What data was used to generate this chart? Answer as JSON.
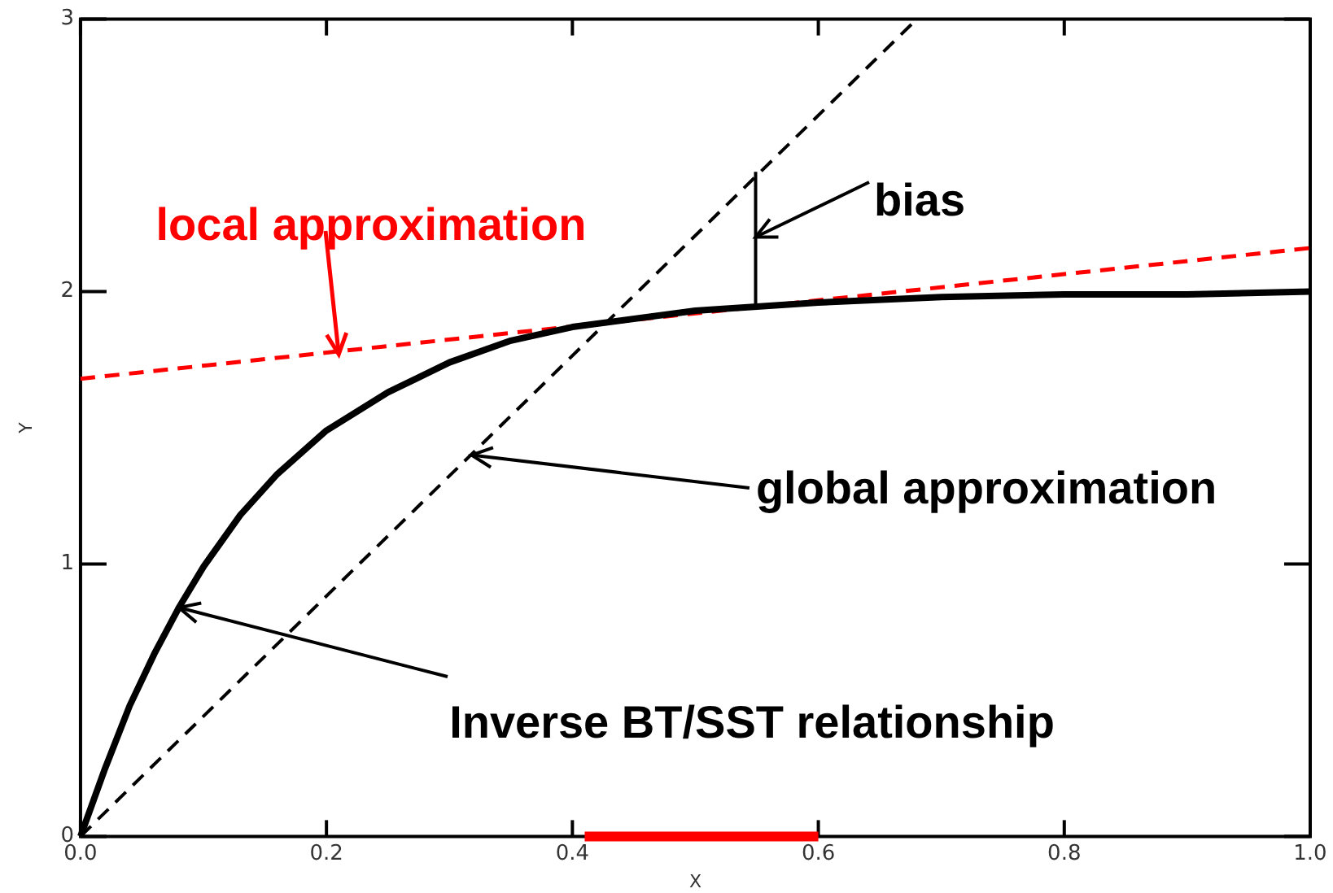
{
  "chart_data": {
    "type": "line",
    "xlabel": "X",
    "ylabel": "Y",
    "xlim": [
      0,
      1
    ],
    "ylim": [
      0,
      3
    ],
    "xticks": [
      {
        "value": 0,
        "label": "0.0"
      },
      {
        "value": 0.2,
        "label": "0.2"
      },
      {
        "value": 0.4,
        "label": "0.4"
      },
      {
        "value": 0.6,
        "label": "0.6"
      },
      {
        "value": 0.8,
        "label": "0.8"
      },
      {
        "value": 1,
        "label": "1.0"
      }
    ],
    "yticks": [
      0,
      1,
      2,
      3
    ],
    "grid": false,
    "legend": false,
    "marker": "none",
    "series": [
      {
        "color": "#000000",
        "line_style": "solid",
        "x": [
          0,
          0.02,
          0.04,
          0.06,
          0.08,
          0.1,
          0.13,
          0.16,
          0.2,
          0.25,
          0.3,
          0.35,
          0.4,
          0.5,
          0.6,
          0.7,
          0.8,
          0.9,
          1.0
        ],
        "values": [
          0,
          0.25,
          0.48,
          0.67,
          0.84,
          0.99,
          1.18,
          1.33,
          1.49,
          1.63,
          1.74,
          1.82,
          1.87,
          1.93,
          1.96,
          1.98,
          1.99,
          1.99,
          2.0
        ]
      },
      {
        "color": "#000000",
        "line_style": "dashed",
        "x": [
          0,
          0.68
        ],
        "values": [
          0,
          3
        ]
      },
      {
        "color": "#ff0000",
        "line_style": "dashed",
        "x": [
          0,
          1
        ],
        "values": [
          1.68,
          2.16
        ]
      },
      {
        "color": "#000000",
        "line_style": "solid",
        "x": [
          0.549,
          0.549
        ],
        "values": [
          1.945,
          2.44
        ]
      },
      {
        "color": "#ff0000",
        "line_style": "solid",
        "x": [
          0.41,
          0.6
        ],
        "values": [
          0,
          0
        ]
      }
    ],
    "annotations": [
      {
        "text": "local approximation",
        "x": 0.21,
        "y": 1.77
      },
      {
        "text": "bias",
        "x": 0.549,
        "y": 2.2
      },
      {
        "text": "global approximation",
        "x": 0.318,
        "y": 1.4
      },
      {
        "text": "Inverse BT/SST relationship",
        "x": 0.08,
        "y": 0.84
      }
    ]
  }
}
